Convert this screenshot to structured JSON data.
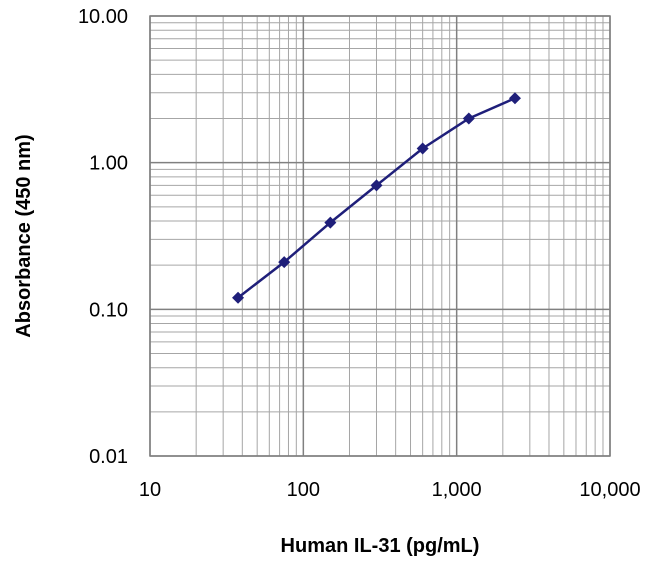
{
  "chart_data": {
    "type": "line",
    "title": "",
    "xlabel": "Human IL-31 (pg/mL)",
    "ylabel": "Absorbance (450 nm)",
    "x_scale": "log",
    "y_scale": "log",
    "xlim": [
      10,
      10000
    ],
    "ylim": [
      0.01,
      10
    ],
    "x_ticks": [
      {
        "value": 10,
        "label": "10"
      },
      {
        "value": 100,
        "label": "100"
      },
      {
        "value": 1000,
        "label": "1,000"
      },
      {
        "value": 10000,
        "label": "10,000"
      }
    ],
    "y_ticks": [
      {
        "value": 10,
        "label": "10.00"
      },
      {
        "value": 1,
        "label": "1.00"
      },
      {
        "value": 0.1,
        "label": "0.10"
      },
      {
        "value": 0.01,
        "label": "0.01"
      }
    ],
    "grid": true,
    "legend": "none",
    "series": [
      {
        "color": "#1f1f7a",
        "marker": "diamond",
        "x": [
          37.5,
          75,
          150,
          300,
          600,
          1200,
          2400
        ],
        "y": [
          0.12,
          0.21,
          0.39,
          0.7,
          1.25,
          2.0,
          2.75
        ]
      }
    ]
  }
}
